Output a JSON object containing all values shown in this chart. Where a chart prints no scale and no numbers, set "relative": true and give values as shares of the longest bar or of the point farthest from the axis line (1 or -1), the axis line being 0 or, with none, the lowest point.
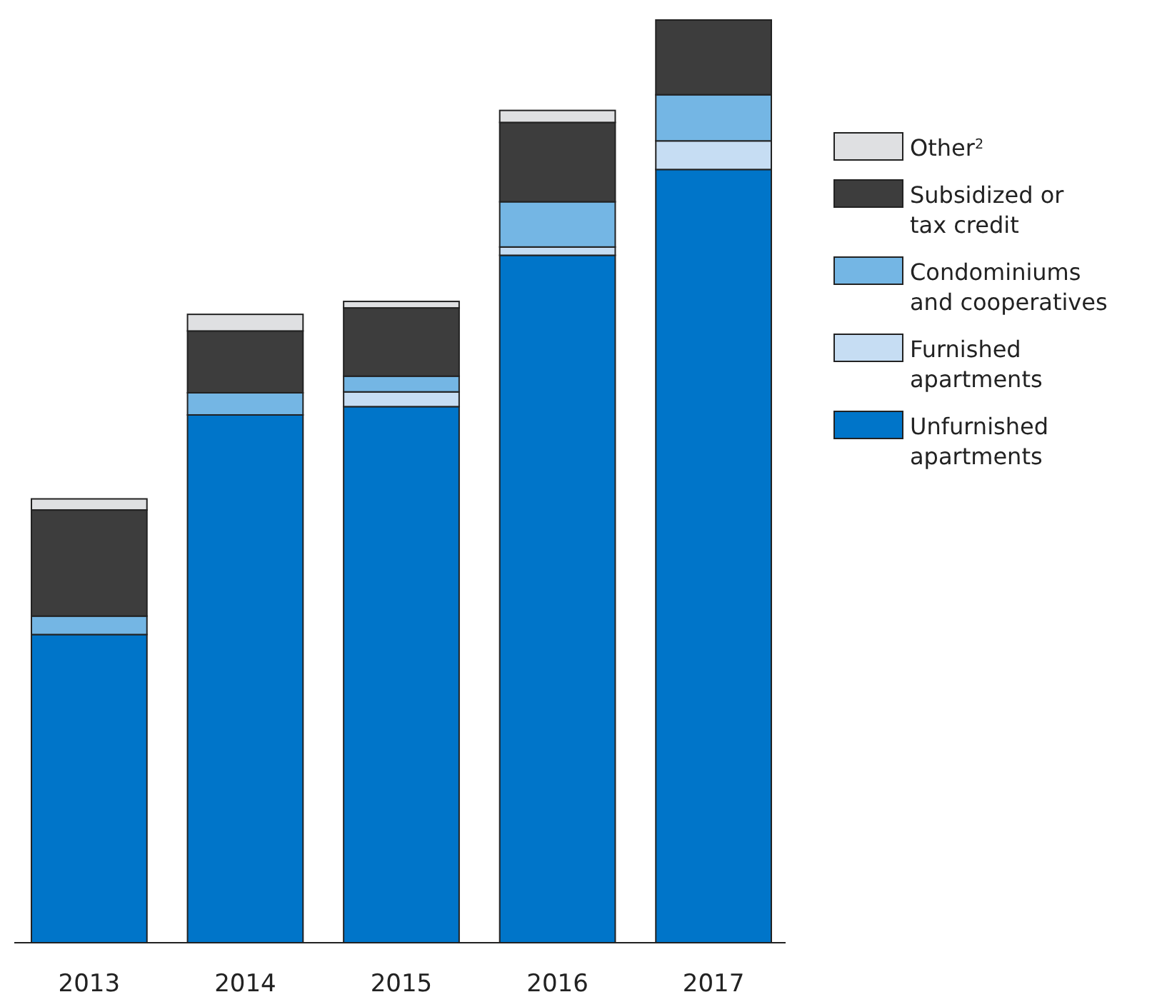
{
  "chart_data": {
    "type": "bar",
    "stacked": true,
    "relative": true,
    "legend": "right",
    "categories": [
      "2013",
      "2014",
      "2015",
      "2016",
      "2017"
    ],
    "series": [
      {
        "name": "Unfurnished apartments",
        "color": "#0075c9",
        "values": [
          0.334,
          0.572,
          0.581,
          0.745,
          0.838
        ]
      },
      {
        "name": "Furnished apartments",
        "color": "#c6ddf3",
        "values": [
          0,
          0,
          0.016,
          0.009,
          0.031
        ]
      },
      {
        "name": "Condominiums and cooperatives",
        "color": "#74b6e4",
        "values": [
          0.02,
          0.024,
          0.017,
          0.049,
          0.05
        ]
      },
      {
        "name": "Subsidized or tax credit",
        "color": "#3d3d3d",
        "values": [
          0.115,
          0.067,
          0.074,
          0.086,
          0.081
        ]
      },
      {
        "name": "Other$^{2}$",
        "color": "#dfe0e2",
        "values": [
          0.012,
          0.018,
          0.007,
          0.013,
          0
        ]
      }
    ]
  }
}
